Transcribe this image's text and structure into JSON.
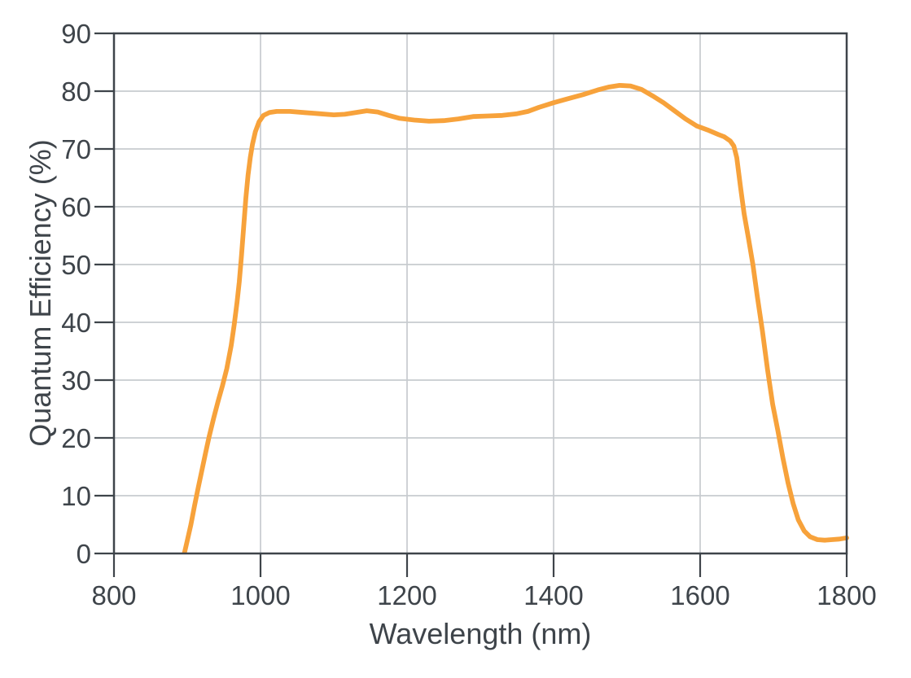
{
  "colors": {
    "background": "#ffffff",
    "curve": "#F7A23B",
    "axis_frame": "#3E444A",
    "gridline": "#C7CBCF",
    "text": "#3E444A"
  },
  "chart_data": {
    "type": "line",
    "title": "",
    "xlabel": "Wavelength (nm)",
    "ylabel": "Quantum Efficiency (%)",
    "xlim": [
      800,
      1800
    ],
    "ylim": [
      0,
      90
    ],
    "x_ticks": [
      800,
      1000,
      1200,
      1400,
      1600,
      1800
    ],
    "y_ticks": [
      0,
      10,
      20,
      30,
      40,
      50,
      60,
      70,
      80,
      90
    ],
    "x_tick_labels": [
      "800",
      "1000",
      "1200",
      "1400",
      "1600",
      "1800"
    ],
    "y_tick_labels": [
      "0",
      "10",
      "20",
      "30",
      "40",
      "50",
      "60",
      "70",
      "80",
      "90"
    ],
    "grid": true,
    "legend": "none",
    "series": [
      {
        "name": "quantum-efficiency-curve",
        "color": "#F7A23B",
        "points": [
          [
            896,
            0
          ],
          [
            900,
            2.2
          ],
          [
            905,
            5
          ],
          [
            910,
            8.3
          ],
          [
            915,
            11.4
          ],
          [
            920,
            14.4
          ],
          [
            925,
            17.4
          ],
          [
            930,
            20.3
          ],
          [
            936,
            23.4
          ],
          [
            942,
            26.3
          ],
          [
            948,
            29
          ],
          [
            954,
            32
          ],
          [
            960,
            36
          ],
          [
            964,
            39.5
          ],
          [
            968,
            43.5
          ],
          [
            971,
            47
          ],
          [
            974,
            51.5
          ],
          [
            977,
            56.5
          ],
          [
            980,
            61.5
          ],
          [
            983,
            65.5
          ],
          [
            986,
            68.5
          ],
          [
            989,
            70.8
          ],
          [
            993,
            73
          ],
          [
            998,
            74.7
          ],
          [
            1004,
            75.8
          ],
          [
            1012,
            76.3
          ],
          [
            1022,
            76.5
          ],
          [
            1040,
            76.5
          ],
          [
            1060,
            76.3
          ],
          [
            1080,
            76.1
          ],
          [
            1100,
            75.9
          ],
          [
            1115,
            76
          ],
          [
            1130,
            76.3
          ],
          [
            1145,
            76.6
          ],
          [
            1160,
            76.4
          ],
          [
            1175,
            75.8
          ],
          [
            1190,
            75.3
          ],
          [
            1210,
            75
          ],
          [
            1230,
            74.8
          ],
          [
            1250,
            74.9
          ],
          [
            1270,
            75.2
          ],
          [
            1290,
            75.6
          ],
          [
            1310,
            75.7
          ],
          [
            1330,
            75.8
          ],
          [
            1350,
            76.1
          ],
          [
            1365,
            76.5
          ],
          [
            1380,
            77.2
          ],
          [
            1400,
            78
          ],
          [
            1420,
            78.7
          ],
          [
            1440,
            79.4
          ],
          [
            1460,
            80.2
          ],
          [
            1475,
            80.7
          ],
          [
            1490,
            81
          ],
          [
            1505,
            80.9
          ],
          [
            1520,
            80.3
          ],
          [
            1535,
            79.2
          ],
          [
            1550,
            78
          ],
          [
            1565,
            76.6
          ],
          [
            1580,
            75.2
          ],
          [
            1595,
            74
          ],
          [
            1610,
            73.3
          ],
          [
            1625,
            72.5
          ],
          [
            1633,
            72.1
          ],
          [
            1641,
            71.4
          ],
          [
            1646,
            70.5
          ],
          [
            1650,
            68.5
          ],
          [
            1655,
            63.5
          ],
          [
            1660,
            58.8
          ],
          [
            1666,
            54.5
          ],
          [
            1672,
            50
          ],
          [
            1678,
            44.5
          ],
          [
            1685,
            38.5
          ],
          [
            1692,
            31.8
          ],
          [
            1699,
            25.8
          ],
          [
            1706,
            21.3
          ],
          [
            1713,
            16.5
          ],
          [
            1720,
            12.2
          ],
          [
            1727,
            8.6
          ],
          [
            1734,
            5.8
          ],
          [
            1742,
            3.9
          ],
          [
            1750,
            2.9
          ],
          [
            1760,
            2.4
          ],
          [
            1770,
            2.3
          ],
          [
            1780,
            2.4
          ],
          [
            1790,
            2.5
          ],
          [
            1800,
            2.7
          ]
        ]
      }
    ]
  }
}
